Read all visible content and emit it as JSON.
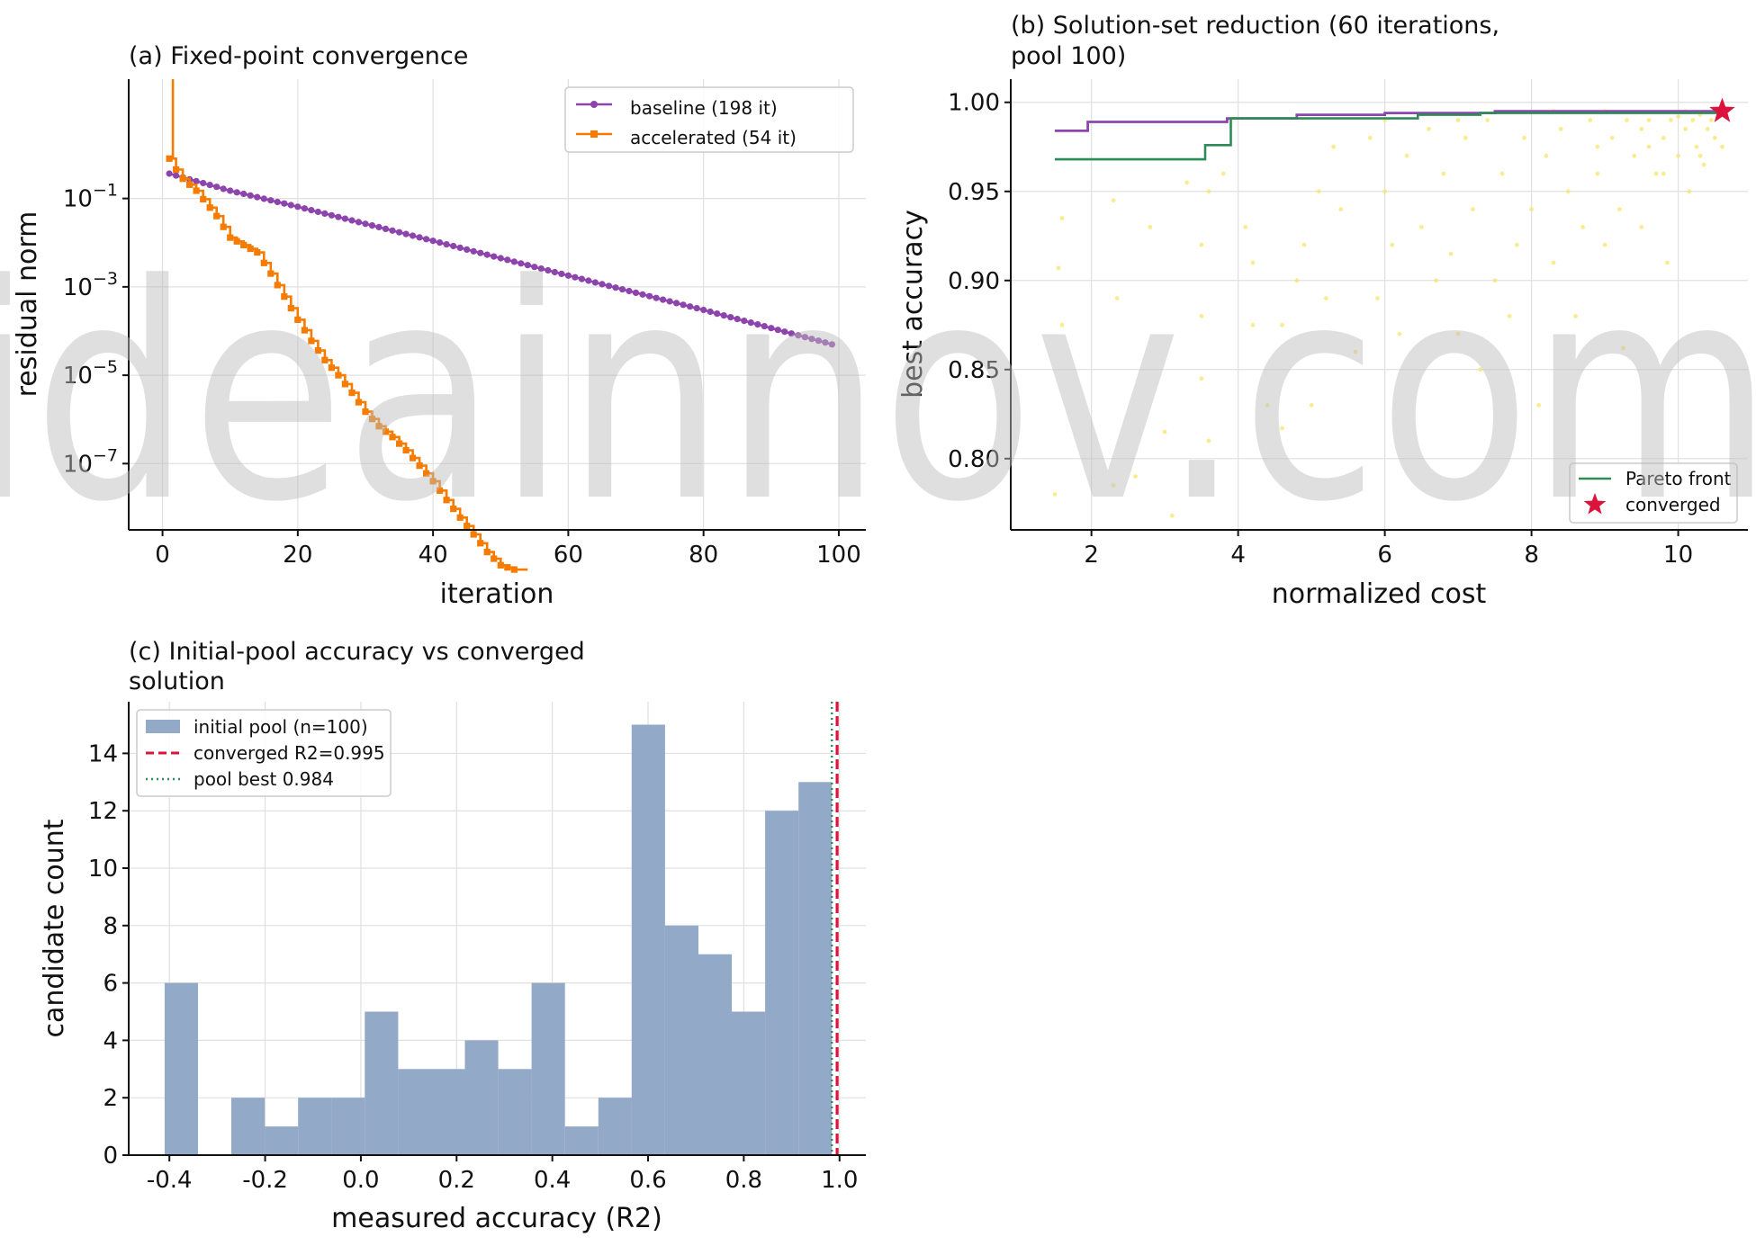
{
  "watermark": "ideainnov.com",
  "panels": {
    "a": {
      "title": "(a) Fixed-point convergence",
      "xlabel": "iteration",
      "ylabel": "residual norm"
    },
    "b": {
      "title_line1": "(b) Solution-set reduction (60 iterations,",
      "title_line2": "pool 100)",
      "xlabel": "normalized cost",
      "ylabel": "best accuracy"
    },
    "c": {
      "title_line1": "(c) Initial-pool accuracy vs converged",
      "title_line2": "solution",
      "xlabel": "measured accuracy (R2)",
      "ylabel": "candidate count"
    }
  },
  "chart_data": [
    {
      "id": "a",
      "type": "line",
      "title": "(a) Fixed-point convergence",
      "xlabel": "iteration",
      "ylabel": "residual norm",
      "yscale": "log",
      "xlim": [
        -5,
        104
      ],
      "ylim_exp": [
        -8.5,
        1.7
      ],
      "xticks": [
        0,
        20,
        40,
        60,
        80,
        100
      ],
      "yticks_exp": [
        -1,
        -3,
        -5,
        -7
      ],
      "legend_loc": "upper right",
      "grid": true,
      "series": [
        {
          "name": "baseline (198 it)",
          "color": "#8e44ad",
          "marker": "circle",
          "x": [
            3,
            10,
            20,
            40,
            60,
            80,
            99
          ],
          "y": [
            0.3,
            0.15,
            0.065,
            0.011,
            0.0018,
            0.0003,
            5e-05
          ]
        },
        {
          "name": "accelerated (54 it)",
          "color": "#f57c00",
          "marker": "square",
          "step": true,
          "x": [
            1,
            2,
            3,
            5,
            8,
            10,
            14,
            16,
            18,
            20,
            22,
            24,
            26,
            28,
            30,
            32,
            34,
            36,
            38,
            40,
            42,
            44,
            46,
            48,
            50,
            52
          ],
          "y": [
            0.8,
            0.45,
            0.28,
            0.15,
            0.04,
            0.013,
            0.006,
            0.002,
            0.0006,
            0.00018,
            6e-05,
            2.2e-05,
            1e-05,
            4e-06,
            1.5e-06,
            7e-07,
            4e-07,
            2e-07,
            9e-08,
            4e-08,
            1.5e-08,
            6e-09,
            2.5e-09,
            1e-09,
            5e-10,
            4e-10
          ]
        }
      ]
    },
    {
      "id": "b",
      "type": "scatter",
      "title": "(b) Solution-set reduction (60 iterations, pool 100)",
      "xlabel": "normalized cost",
      "ylabel": "best accuracy",
      "xlim": [
        0.9,
        10.95
      ],
      "ylim": [
        0.76,
        1.013
      ],
      "xticks": [
        2,
        4,
        6,
        8,
        10
      ],
      "yticks": [
        0.8,
        0.85,
        0.9,
        0.95,
        1.0
      ],
      "legend_loc": "lower right",
      "grid": true,
      "points": [
        [
          1.5,
          0.78
        ],
        [
          1.6,
          0.875
        ],
        [
          1.55,
          0.907
        ],
        [
          1.6,
          0.935
        ],
        [
          2.3,
          0.945
        ],
        [
          2.35,
          0.89
        ],
        [
          2.3,
          0.785
        ],
        [
          3.1,
          0.768
        ],
        [
          2.6,
          0.79
        ],
        [
          2.8,
          0.93
        ],
        [
          3.0,
          0.815
        ],
        [
          3.3,
          0.955
        ],
        [
          3.5,
          0.88
        ],
        [
          3.6,
          0.81
        ],
        [
          3.5,
          0.845
        ],
        [
          3.6,
          0.95
        ],
        [
          3.5,
          0.92
        ],
        [
          3.8,
          0.96
        ],
        [
          4.1,
          0.93
        ],
        [
          4.2,
          0.875
        ],
        [
          4.2,
          0.91
        ],
        [
          4.4,
          0.83
        ],
        [
          4.6,
          0.817
        ],
        [
          4.6,
          0.875
        ],
        [
          4.8,
          0.9
        ],
        [
          4.9,
          0.92
        ],
        [
          5.1,
          0.95
        ],
        [
          5.0,
          0.83
        ],
        [
          5.2,
          0.89
        ],
        [
          5.3,
          0.975
        ],
        [
          5.4,
          0.94
        ],
        [
          5.6,
          0.86
        ],
        [
          5.8,
          0.98
        ],
        [
          5.9,
          0.89
        ],
        [
          6.0,
          0.95
        ],
        [
          6.1,
          0.92
        ],
        [
          6.2,
          0.87
        ],
        [
          6.3,
          0.97
        ],
        [
          6.5,
          0.93
        ],
        [
          6.6,
          0.985
        ],
        [
          6.7,
          0.9
        ],
        [
          6.8,
          0.96
        ],
        [
          6.9,
          0.915
        ],
        [
          7.0,
          0.87
        ],
        [
          7.1,
          0.98
        ],
        [
          7.2,
          0.94
        ],
        [
          7.3,
          0.85
        ],
        [
          7.4,
          0.99
        ],
        [
          7.5,
          0.9
        ],
        [
          7.6,
          0.96
        ],
        [
          7.7,
          0.88
        ],
        [
          7.8,
          0.92
        ],
        [
          7.9,
          0.98
        ],
        [
          8.0,
          0.94
        ],
        [
          8.1,
          0.83
        ],
        [
          8.2,
          0.97
        ],
        [
          8.3,
          0.91
        ],
        [
          8.4,
          0.985
        ],
        [
          8.5,
          0.95
        ],
        [
          8.6,
          0.88
        ],
        [
          8.7,
          0.93
        ],
        [
          8.8,
          0.99
        ],
        [
          8.9,
          0.96
        ],
        [
          9.0,
          0.92
        ],
        [
          9.1,
          0.98
        ],
        [
          9.2,
          0.94
        ],
        [
          9.25,
          0.862
        ],
        [
          9.3,
          0.99
        ],
        [
          9.4,
          0.97
        ],
        [
          9.5,
          0.93
        ],
        [
          9.6,
          0.99
        ],
        [
          9.7,
          0.96
        ],
        [
          9.8,
          0.98
        ],
        [
          9.85,
          0.91
        ],
        [
          9.9,
          0.99
        ],
        [
          10.0,
          0.97
        ],
        [
          10.1,
          0.985
        ],
        [
          10.15,
          0.95
        ],
        [
          10.2,
          0.99
        ],
        [
          10.25,
          0.975
        ],
        [
          10.3,
          0.993
        ],
        [
          10.35,
          0.965
        ],
        [
          10.4,
          0.985
        ],
        [
          10.45,
          0.99
        ],
        [
          10.5,
          0.98
        ],
        [
          10.55,
          0.995
        ],
        [
          10.6,
          0.975
        ],
        [
          8.9,
          0.975
        ],
        [
          9.5,
          0.985
        ],
        [
          10.0,
          0.992
        ],
        [
          7.0,
          0.99
        ],
        [
          6.0,
          0.99
        ],
        [
          9.8,
          0.96
        ],
        [
          10.3,
          0.97
        ],
        [
          8.3,
          0.995
        ],
        [
          9.0,
          0.995
        ],
        [
          9.6,
          0.975
        ],
        [
          10.1,
          0.995
        ]
      ],
      "point_color": "#f7e56b",
      "series": [
        {
          "name": "",
          "color": "#8e44ad",
          "x": [
            1.5,
            1.95,
            3.6,
            3.85,
            4.8,
            6.0,
            7.5,
            9.2,
            10.6
          ],
          "y": [
            0.984,
            0.989,
            0.989,
            0.991,
            0.993,
            0.994,
            0.995,
            0.995,
            0.996
          ]
        },
        {
          "name": "Pareto front",
          "color": "#2e8b57",
          "step": true,
          "x": [
            1.5,
            3.55,
            3.9,
            4.9,
            6.45,
            7.3,
            10.6
          ],
          "y": [
            0.968,
            0.976,
            0.991,
            0.991,
            0.993,
            0.994,
            0.995
          ]
        }
      ],
      "marker": {
        "name": "converged",
        "x": 10.6,
        "y": 0.995,
        "color": "#dc143c",
        "shape": "star"
      }
    },
    {
      "id": "c",
      "type": "bar",
      "title": "(c) Initial-pool accuracy vs converged solution",
      "xlabel": "measured accuracy (R2)",
      "ylabel": "candidate count",
      "xlim": [
        -0.485,
        1.055
      ],
      "ylim": [
        0,
        15.8
      ],
      "xticks": [
        -0.4,
        -0.2,
        0.0,
        0.2,
        0.4,
        0.6,
        0.8,
        1.0
      ],
      "xtick_labels": [
        "-0.4",
        "-0.2",
        "0.0",
        "0.2",
        "0.4",
        "0.6",
        "0.8",
        "1.0"
      ],
      "yticks": [
        0,
        2,
        4,
        6,
        8,
        10,
        12,
        14
      ],
      "legend_loc": "upper left",
      "grid": true,
      "bin_start": -0.41,
      "bin_width": 0.0697,
      "counts": [
        6,
        0,
        2,
        1,
        2,
        2,
        5,
        3,
        3,
        4,
        3,
        6,
        1,
        2,
        15,
        8,
        7,
        5,
        12,
        13
      ],
      "bar_color": "#93a9c8",
      "series": [
        {
          "name": "initial pool (n=100)"
        },
        {
          "name": "converged R2=0.995",
          "color": "#dc143c",
          "style": "dashed",
          "x": 0.995
        },
        {
          "name": "pool best 0.984",
          "color": "#2e8b57",
          "style": "dotted",
          "x": 0.984
        }
      ]
    }
  ]
}
